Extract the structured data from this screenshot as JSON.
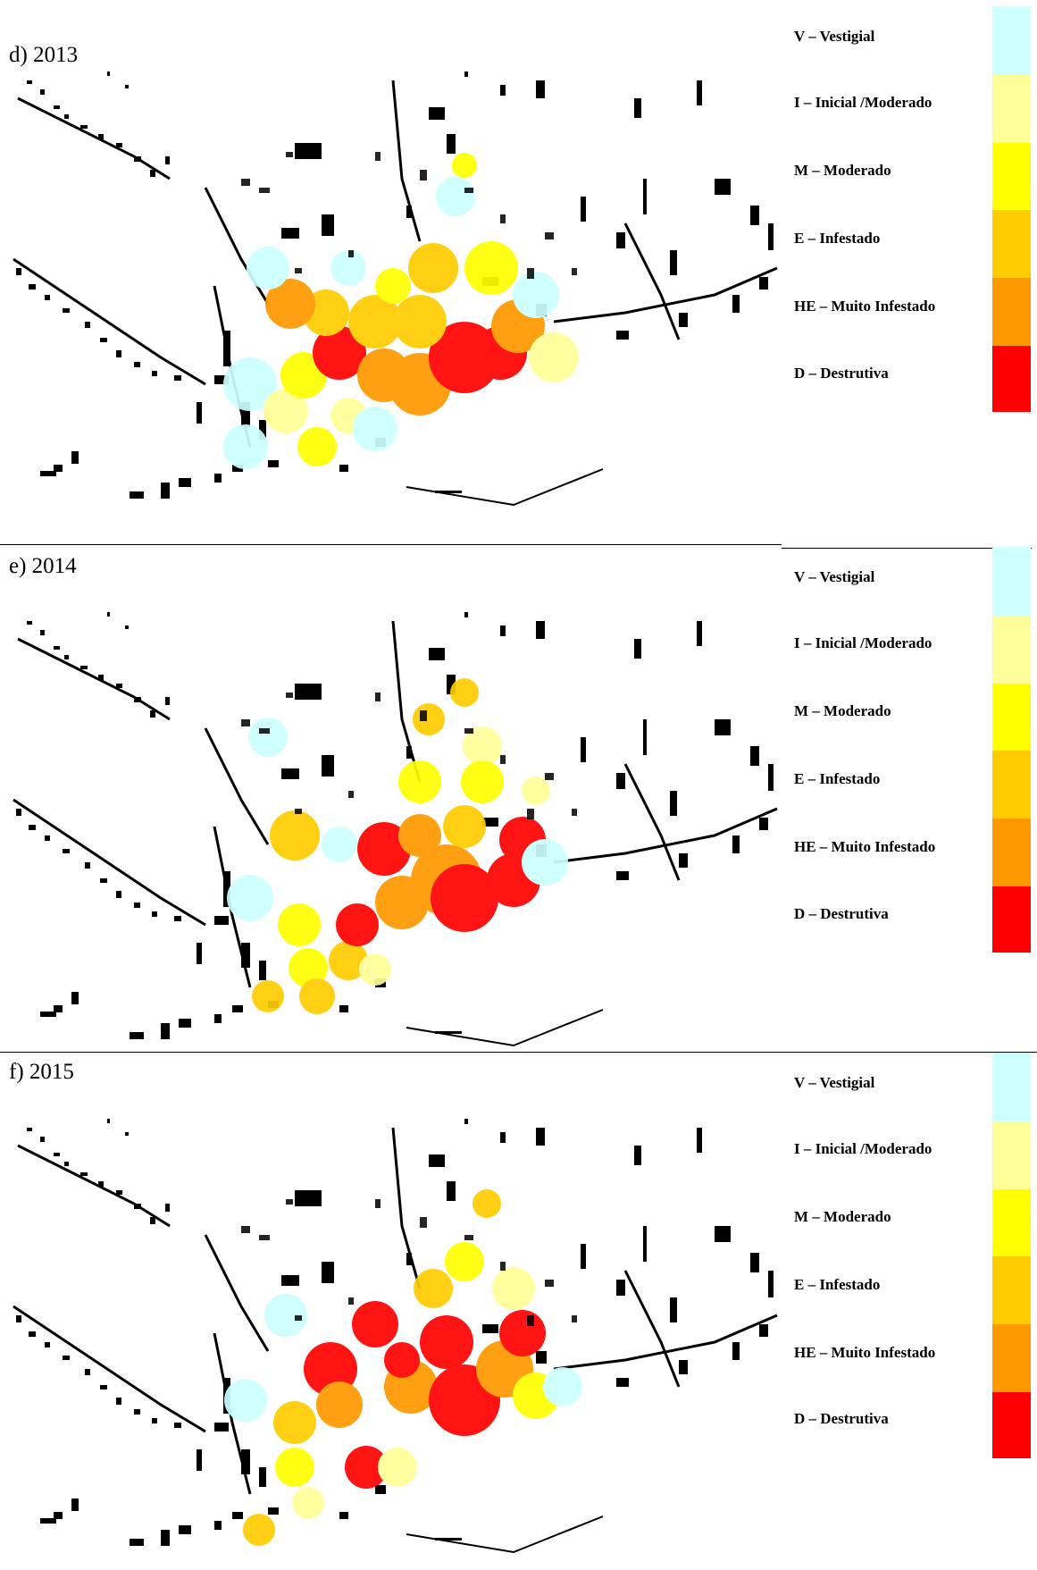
{
  "legend": {
    "items": [
      {
        "label": "V – Vestigial",
        "color": "#ccffff"
      },
      {
        "label": "I – Inicial /Moderado",
        "color": "#ffff99"
      },
      {
        "label": "M – Moderado",
        "color": "#ffff00"
      },
      {
        "label": "E – Infestado",
        "color": "#ffcc00"
      },
      {
        "label": "HE – Muito Infestado",
        "color": "#ff9900"
      },
      {
        "label": "D – Destrutiva",
        "color": "#ff0000"
      }
    ]
  },
  "panels": [
    {
      "title": "d) 2013"
    },
    {
      "title": "e) 2014"
    },
    {
      "title": "f) 2015"
    }
  ],
  "map_colors": {
    "buildings": "#000000",
    "gradient_mid": "#ff7700"
  }
}
